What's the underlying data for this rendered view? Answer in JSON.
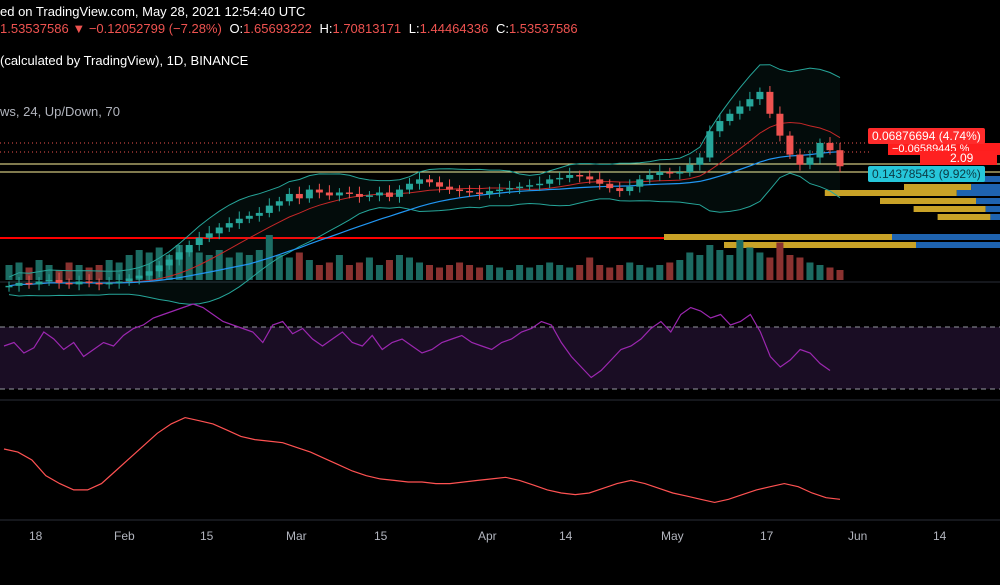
{
  "header": {
    "line1_text": "ed on TradingView.com, May 28, 2021 12:54:40 UTC",
    "last": "1.53537586",
    "change": "−0.12052799 (−7.28%)",
    "open_label": "O:",
    "open": "1.65693222",
    "high_label": "H:",
    "high": "1.70813171",
    "low_label": "L:",
    "low": "1.44464336",
    "close_label": "C:",
    "close": "1.53537586",
    "symbol_line": "(calculated by TradingView), 1D, BINANCE",
    "indicator_line": "ws, 24, Up/Down, 70"
  },
  "price_tags": {
    "main": "0.06876694 (4.74%)",
    "sub": "−0.06589445 %",
    "value": "2.09",
    "cyan": "0.14378543 (9.92%)"
  },
  "x_axis": {
    "ticks": [
      "18",
      "Feb",
      "15",
      "Mar",
      "15",
      "Apr",
      "14",
      "May",
      "17",
      "Jun",
      "14"
    ]
  },
  "colors": {
    "up": "#26a69a",
    "down": "#ef5350",
    "background": "#000000",
    "rsi_line": "#9c27b0",
    "osc_line": "#ff5252",
    "bb_band": "#26a69a",
    "ma_blue": "#2196f3",
    "ma_red": "#c62828",
    "hline_red": "#ff0000",
    "hline_yellow": "#fff59d",
    "vp_gold": "#c9a227",
    "vp_blue": "#1e63b0"
  },
  "chart_data": {
    "type": "candlestick",
    "price_range_visible": [
      1.0,
      2.2
    ],
    "candles_close": [
      0.72,
      0.74,
      0.73,
      0.75,
      0.76,
      0.74,
      0.73,
      0.75,
      0.74,
      0.73,
      0.74,
      0.75,
      0.77,
      0.79,
      0.82,
      0.86,
      0.9,
      0.95,
      1.0,
      1.05,
      1.08,
      1.12,
      1.15,
      1.18,
      1.2,
      1.22,
      1.27,
      1.3,
      1.35,
      1.32,
      1.38,
      1.36,
      1.34,
      1.36,
      1.35,
      1.33,
      1.34,
      1.36,
      1.33,
      1.38,
      1.42,
      1.45,
      1.43,
      1.4,
      1.38,
      1.37,
      1.36,
      1.35,
      1.37,
      1.38,
      1.39,
      1.4,
      1.41,
      1.42,
      1.45,
      1.46,
      1.48,
      1.47,
      1.45,
      1.42,
      1.39,
      1.37,
      1.4,
      1.45,
      1.48,
      1.5,
      1.49,
      1.5,
      1.55,
      1.6,
      1.78,
      1.85,
      1.9,
      1.95,
      2.0,
      2.05,
      1.9,
      1.75,
      1.62,
      1.55,
      1.6,
      1.7,
      1.65,
      1.54
    ],
    "volume_relative": [
      0.3,
      0.35,
      0.25,
      0.4,
      0.3,
      0.2,
      0.35,
      0.3,
      0.25,
      0.3,
      0.4,
      0.35,
      0.5,
      0.6,
      0.55,
      0.65,
      0.5,
      0.7,
      0.6,
      0.55,
      0.5,
      0.6,
      0.45,
      0.55,
      0.5,
      0.6,
      0.9,
      0.5,
      0.45,
      0.55,
      0.4,
      0.3,
      0.35,
      0.5,
      0.3,
      0.35,
      0.45,
      0.3,
      0.4,
      0.5,
      0.45,
      0.35,
      0.3,
      0.25,
      0.3,
      0.35,
      0.3,
      0.25,
      0.3,
      0.25,
      0.2,
      0.3,
      0.25,
      0.3,
      0.35,
      0.3,
      0.25,
      0.3,
      0.45,
      0.3,
      0.25,
      0.3,
      0.35,
      0.3,
      0.25,
      0.3,
      0.35,
      0.4,
      0.55,
      0.5,
      0.7,
      0.6,
      0.5,
      0.8,
      0.65,
      0.55,
      0.45,
      0.75,
      0.5,
      0.45,
      0.35,
      0.3,
      0.25,
      0.2
    ],
    "rsi_levels": [
      70,
      30
    ],
    "rsi": [
      48,
      50,
      44,
      47,
      56,
      52,
      46,
      50,
      42,
      46,
      50,
      48,
      54,
      58,
      60,
      64,
      66,
      68,
      70,
      72,
      70,
      66,
      62,
      60,
      58,
      56,
      50,
      60,
      62,
      55,
      58,
      52,
      48,
      52,
      56,
      50,
      48,
      54,
      46,
      50,
      52,
      48,
      44,
      46,
      50,
      52,
      54,
      50,
      48,
      46,
      50,
      52,
      56,
      58,
      62,
      60,
      50,
      42,
      36,
      30,
      34,
      40,
      46,
      48,
      52,
      58,
      62,
      56,
      66,
      70,
      68,
      64,
      66,
      60,
      62,
      66,
      56,
      42,
      36,
      40,
      46,
      44,
      38,
      34
    ],
    "oscillator": [
      62,
      60,
      55,
      45,
      40,
      36,
      36,
      40,
      48,
      56,
      64,
      72,
      78,
      82,
      80,
      78,
      74,
      70,
      68,
      67,
      66,
      63,
      60,
      56,
      52,
      48,
      45,
      43,
      42,
      41,
      41,
      40,
      40,
      41,
      42,
      43,
      44,
      42,
      39,
      36,
      34,
      33,
      34,
      37,
      40,
      42,
      40,
      37,
      34,
      32,
      30,
      28,
      30,
      33,
      36,
      38,
      40,
      38,
      34,
      31,
      30
    ],
    "volume_profile_rows": [
      {
        "gold": 0.35,
        "blue": 0.1
      },
      {
        "gold": 0.28,
        "blue": 0.12
      },
      {
        "gold": 0.55,
        "blue": 0.18
      },
      {
        "gold": 0.4,
        "blue": 0.1
      },
      {
        "gold": 0.3,
        "blue": 0.06
      },
      {
        "gold": 0.22,
        "blue": 0.04
      },
      {
        "gold": 0.95,
        "blue": 0.45
      },
      {
        "gold": 0.8,
        "blue": 0.35
      }
    ],
    "horizontal_levels": [
      "red",
      "yellow",
      "yellow"
    ]
  }
}
